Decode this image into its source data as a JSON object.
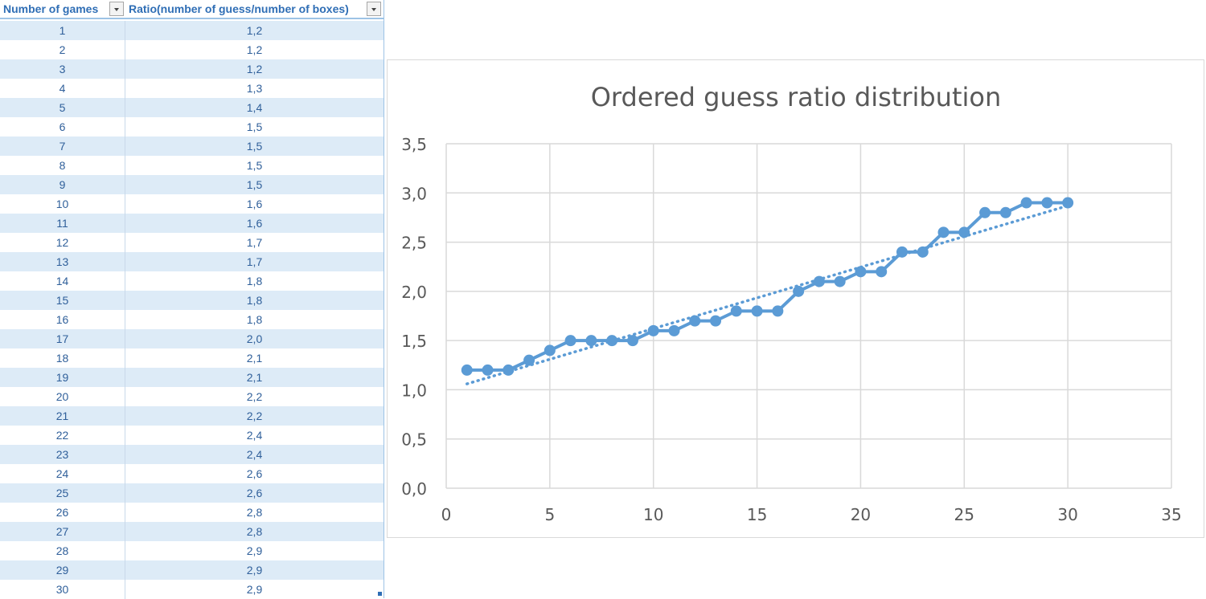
{
  "table": {
    "headers": [
      "Number of games",
      "Ratio(number of guess/number of boxes)"
    ],
    "rows": [
      [
        "1",
        "1,2"
      ],
      [
        "2",
        "1,2"
      ],
      [
        "3",
        "1,2"
      ],
      [
        "4",
        "1,3"
      ],
      [
        "5",
        "1,4"
      ],
      [
        "6",
        "1,5"
      ],
      [
        "7",
        "1,5"
      ],
      [
        "8",
        "1,5"
      ],
      [
        "9",
        "1,5"
      ],
      [
        "10",
        "1,6"
      ],
      [
        "11",
        "1,6"
      ],
      [
        "12",
        "1,7"
      ],
      [
        "13",
        "1,7"
      ],
      [
        "14",
        "1,8"
      ],
      [
        "15",
        "1,8"
      ],
      [
        "16",
        "1,8"
      ],
      [
        "17",
        "2,0"
      ],
      [
        "18",
        "2,1"
      ],
      [
        "19",
        "2,1"
      ],
      [
        "20",
        "2,2"
      ],
      [
        "21",
        "2,2"
      ],
      [
        "22",
        "2,4"
      ],
      [
        "23",
        "2,4"
      ],
      [
        "24",
        "2,6"
      ],
      [
        "25",
        "2,6"
      ],
      [
        "26",
        "2,8"
      ],
      [
        "27",
        "2,8"
      ],
      [
        "28",
        "2,9"
      ],
      [
        "29",
        "2,9"
      ],
      [
        "30",
        "2,9"
      ]
    ]
  },
  "colors": {
    "header_text": "#2f6eb5",
    "band_fill": "#ddebf7",
    "series": "#5b9bd5",
    "gridline": "#d9d9d9",
    "axis_text": "#595959"
  },
  "chart_data": {
    "type": "scatter",
    "title": "Ordered guess ratio distribution",
    "xlabel": "",
    "ylabel": "",
    "xlim": [
      0,
      35
    ],
    "ylim": [
      0,
      3.5
    ],
    "x_ticks": [
      "0",
      "5",
      "10",
      "15",
      "20",
      "25",
      "30",
      "35"
    ],
    "y_ticks": [
      "0,0",
      "0,5",
      "1,0",
      "1,5",
      "2,0",
      "2,5",
      "3,0",
      "3,5"
    ],
    "grid": true,
    "legend": "none",
    "series": [
      {
        "style": "line-with-markers",
        "x": [
          1,
          2,
          3,
          4,
          5,
          6,
          7,
          8,
          9,
          10,
          11,
          12,
          13,
          14,
          15,
          16,
          17,
          18,
          19,
          20,
          21,
          22,
          23,
          24,
          25,
          26,
          27,
          28,
          29,
          30
        ],
        "y": [
          1.2,
          1.2,
          1.2,
          1.3,
          1.4,
          1.5,
          1.5,
          1.5,
          1.5,
          1.6,
          1.6,
          1.7,
          1.7,
          1.8,
          1.8,
          1.8,
          2.0,
          2.1,
          2.1,
          2.2,
          2.2,
          2.4,
          2.4,
          2.6,
          2.6,
          2.8,
          2.8,
          2.9,
          2.9,
          2.9
        ]
      }
    ],
    "trendline": {
      "type": "linear",
      "style": "dotted",
      "x_range": [
        1,
        30
      ],
      "y_range": [
        1.06,
        2.87
      ]
    }
  }
}
